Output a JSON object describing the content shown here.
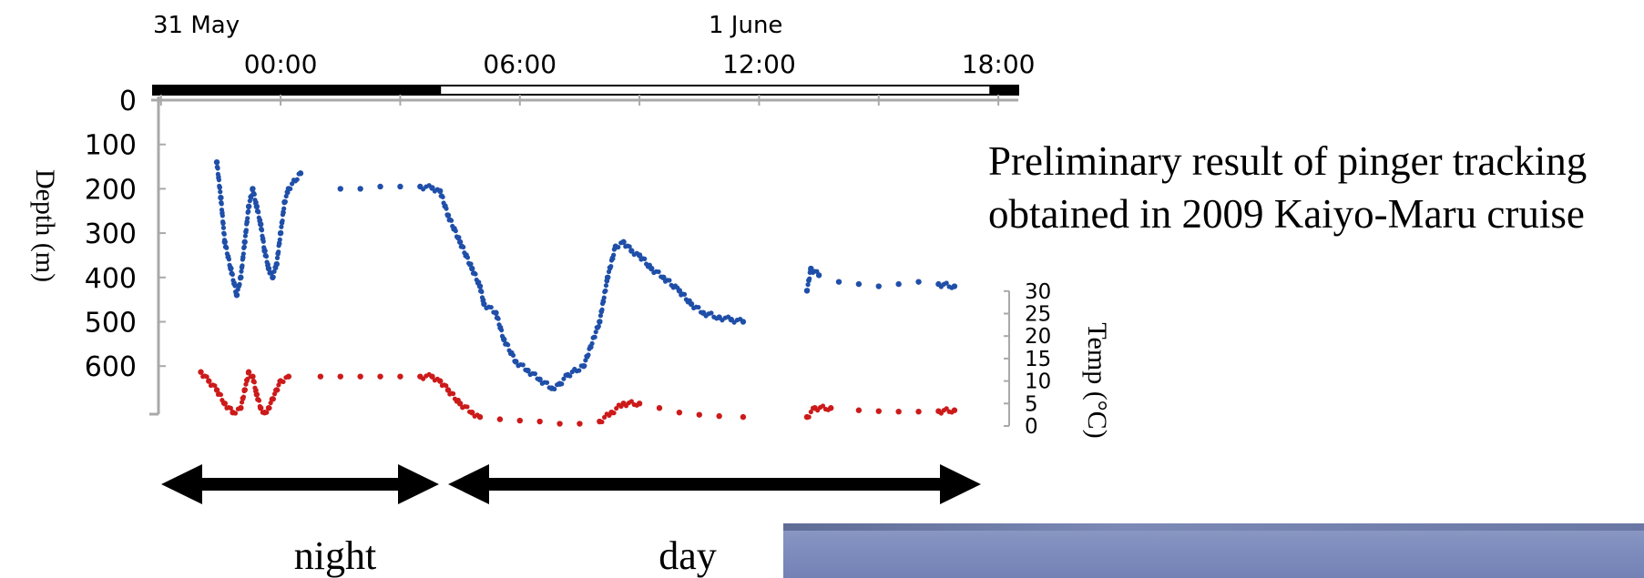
{
  "chart_data": {
    "type": "scatter",
    "date_labels": [
      "31 May",
      "1 June"
    ],
    "time_ticks": [
      "00:00",
      "06:00",
      "12:00",
      "18:00"
    ],
    "ylabel": "Depth (m)",
    "yticks": [
      "0",
      "100",
      "200",
      "300",
      "400",
      "500",
      "600"
    ],
    "ylim": [
      700,
      0
    ],
    "y2label": "Temp (°C)",
    "y2ticks": [
      "30",
      "25",
      "20",
      "15",
      "10",
      "5",
      "0"
    ],
    "y2lim": [
      0,
      30
    ],
    "xlim_hours": [
      -3.2,
      18.5
    ],
    "light_bar": [
      {
        "from": -3.2,
        "to": 4.0,
        "color": "#000000"
      },
      {
        "from": 4.0,
        "to": 17.8,
        "color": "#ffffff"
      },
      {
        "from": 17.8,
        "to": 18.5,
        "color": "#000000"
      }
    ],
    "series": [
      {
        "color": "#1f4fa8",
        "points": [
          [
            -1.6,
            140
          ],
          [
            -1.5,
            220
          ],
          [
            -1.4,
            320
          ],
          [
            -1.25,
            380
          ],
          [
            -1.1,
            440
          ],
          [
            -1.0,
            400
          ],
          [
            -0.9,
            320
          ],
          [
            -0.8,
            240
          ],
          [
            -0.7,
            200
          ],
          [
            -0.6,
            240
          ],
          [
            -0.5,
            280
          ],
          [
            -0.4,
            340
          ],
          [
            -0.3,
            380
          ],
          [
            -0.2,
            400
          ],
          [
            -0.1,
            370
          ],
          [
            0.0,
            300
          ],
          [
            0.1,
            230
          ],
          [
            0.2,
            200
          ],
          [
            0.5,
            165
          ],
          [
            1.5,
            200
          ],
          [
            2.0,
            200
          ],
          [
            2.5,
            195
          ],
          [
            3.0,
            195
          ],
          [
            3.5,
            195
          ],
          [
            3.8,
            198
          ],
          [
            4.0,
            205
          ],
          [
            4.2,
            260
          ],
          [
            4.5,
            320
          ],
          [
            4.8,
            380
          ],
          [
            5.0,
            420
          ],
          [
            5.1,
            460
          ],
          [
            5.4,
            480
          ],
          [
            5.6,
            540
          ],
          [
            5.9,
            590
          ],
          [
            6.2,
            610
          ],
          [
            6.5,
            630
          ],
          [
            6.8,
            650
          ],
          [
            7.0,
            640
          ],
          [
            7.2,
            620
          ],
          [
            7.6,
            600
          ],
          [
            8.0,
            500
          ],
          [
            8.2,
            400
          ],
          [
            8.4,
            330
          ],
          [
            8.6,
            320
          ],
          [
            8.8,
            340
          ],
          [
            9.0,
            350
          ],
          [
            9.3,
            380
          ],
          [
            9.6,
            400
          ],
          [
            10.0,
            430
          ],
          [
            10.3,
            460
          ],
          [
            10.6,
            480
          ],
          [
            11.0,
            490
          ],
          [
            11.3,
            495
          ],
          [
            11.6,
            500
          ],
          [
            13.2,
            430
          ],
          [
            13.3,
            380
          ],
          [
            13.5,
            395
          ],
          [
            14.0,
            410
          ],
          [
            14.5,
            415
          ],
          [
            15.0,
            420
          ],
          [
            15.5,
            415
          ],
          [
            16.0,
            410
          ],
          [
            16.5,
            415
          ],
          [
            16.9,
            420
          ]
        ]
      },
      {
        "color": "#cc1a1a",
        "points": [
          [
            -2.0,
            12
          ],
          [
            -1.8,
            10
          ],
          [
            -1.6,
            8
          ],
          [
            -1.4,
            5
          ],
          [
            -1.2,
            3
          ],
          [
            -1.0,
            4
          ],
          [
            -0.9,
            8
          ],
          [
            -0.8,
            12
          ],
          [
            -0.7,
            11
          ],
          [
            -0.6,
            7
          ],
          [
            -0.5,
            4
          ],
          [
            -0.4,
            3
          ],
          [
            -0.3,
            4
          ],
          [
            -0.2,
            6
          ],
          [
            -0.1,
            8
          ],
          [
            0.0,
            10
          ],
          [
            0.2,
            11
          ],
          [
            1.0,
            11
          ],
          [
            1.5,
            11
          ],
          [
            2.0,
            11
          ],
          [
            2.5,
            11
          ],
          [
            3.0,
            11
          ],
          [
            3.5,
            11
          ],
          [
            3.8,
            11
          ],
          [
            4.0,
            10
          ],
          [
            4.2,
            8
          ],
          [
            4.5,
            5
          ],
          [
            4.8,
            3
          ],
          [
            5.0,
            2
          ],
          [
            5.5,
            1.5
          ],
          [
            6.0,
            1.2
          ],
          [
            6.5,
            1
          ],
          [
            7.0,
            0.5
          ],
          [
            7.5,
            0.5
          ],
          [
            8.0,
            1
          ],
          [
            8.3,
            3
          ],
          [
            8.6,
            5
          ],
          [
            9.0,
            5
          ],
          [
            9.5,
            4
          ],
          [
            10.0,
            3
          ],
          [
            10.5,
            2.5
          ],
          [
            11.0,
            2.2
          ],
          [
            11.6,
            2
          ],
          [
            13.2,
            2
          ],
          [
            13.4,
            4
          ],
          [
            13.8,
            4
          ],
          [
            14.5,
            3.5
          ],
          [
            15.0,
            3.3
          ],
          [
            15.5,
            3.2
          ],
          [
            16.0,
            3.2
          ],
          [
            16.5,
            3.3
          ],
          [
            16.9,
            3.5
          ]
        ]
      }
    ]
  },
  "annotations": {
    "note_line1": "Preliminary result of pinger tracking",
    "note_line2": "obtained in 2009 Kaiyo-Maru cruise",
    "night_label": "night",
    "day_label": "day"
  }
}
